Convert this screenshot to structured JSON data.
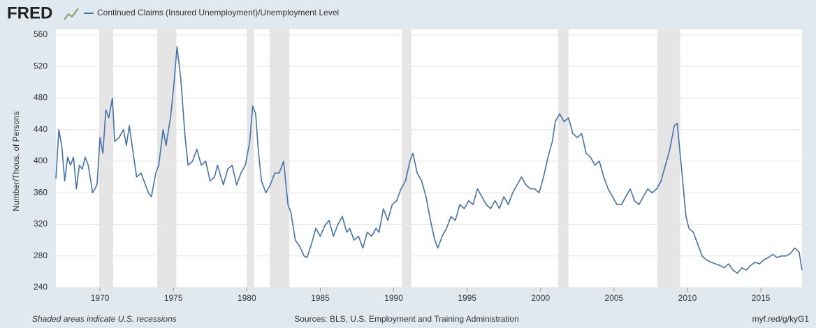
{
  "brand": "FRED",
  "chart_data": {
    "type": "line",
    "y_label": "Number/Thous. of Persons",
    "x": [
      1967.0,
      1967.2,
      1967.4,
      1967.6,
      1967.8,
      1968.0,
      1968.2,
      1968.4,
      1968.6,
      1968.8,
      1969.0,
      1969.2,
      1969.5,
      1969.8,
      1970.0,
      1970.2,
      1970.4,
      1970.6,
      1970.85,
      1971.0,
      1971.3,
      1971.6,
      1971.8,
      1972.0,
      1972.3,
      1972.5,
      1972.8,
      1973.0,
      1973.3,
      1973.5,
      1973.8,
      1974.0,
      1974.3,
      1974.5,
      1974.8,
      1975.0,
      1975.25,
      1975.5,
      1975.8,
      1976.0,
      1976.3,
      1976.6,
      1976.9,
      1977.2,
      1977.5,
      1977.8,
      1978.0,
      1978.4,
      1978.7,
      1979.0,
      1979.3,
      1979.6,
      1979.9,
      1980.2,
      1980.4,
      1980.6,
      1980.8,
      1981.0,
      1981.3,
      1981.6,
      1981.9,
      1982.2,
      1982.5,
      1982.8,
      1983.0,
      1983.3,
      1983.6,
      1983.9,
      1984.1,
      1984.4,
      1984.7,
      1985.0,
      1985.3,
      1985.6,
      1985.9,
      1986.2,
      1986.5,
      1986.8,
      1987.0,
      1987.3,
      1987.6,
      1987.9,
      1988.2,
      1988.5,
      1988.8,
      1989.0,
      1989.3,
      1989.6,
      1989.9,
      1990.2,
      1990.5,
      1990.8,
      1991.1,
      1991.3,
      1991.6,
      1991.9,
      1992.2,
      1992.5,
      1992.8,
      1993.0,
      1993.3,
      1993.6,
      1993.9,
      1994.2,
      1994.5,
      1994.8,
      1995.1,
      1995.4,
      1995.7,
      1996.0,
      1996.3,
      1996.6,
      1996.9,
      1997.2,
      1997.5,
      1997.8,
      1998.1,
      1998.4,
      1998.7,
      1999.0,
      1999.3,
      1999.6,
      1999.9,
      2000.2,
      2000.5,
      2000.8,
      2001.0,
      2001.3,
      2001.6,
      2001.9,
      2002.2,
      2002.5,
      2002.8,
      2003.1,
      2003.4,
      2003.7,
      2004.0,
      2004.3,
      2004.6,
      2004.9,
      2005.2,
      2005.5,
      2005.8,
      2006.1,
      2006.4,
      2006.7,
      2007.0,
      2007.3,
      2007.6,
      2007.9,
      2008.2,
      2008.5,
      2008.8,
      2009.1,
      2009.3,
      2009.6,
      2009.9,
      2010.1,
      2010.4,
      2010.7,
      2011.0,
      2011.3,
      2011.6,
      2011.9,
      2012.2,
      2012.5,
      2012.8,
      2013.1,
      2013.4,
      2013.7,
      2014.0,
      2014.3,
      2014.6,
      2014.9,
      2015.2,
      2015.5,
      2015.8,
      2016.1,
      2016.4,
      2016.7,
      2017.0,
      2017.3,
      2017.6,
      2017.8
    ],
    "series": [
      {
        "name": "Continued Claims (Insured Unemployment)/Unemployment Level",
        "color": "#4572a7",
        "values": [
          378,
          440,
          420,
          375,
          405,
          395,
          405,
          365,
          395,
          390,
          405,
          395,
          360,
          370,
          430,
          410,
          465,
          455,
          480,
          425,
          430,
          440,
          420,
          445,
          405,
          380,
          385,
          375,
          360,
          355,
          385,
          395,
          440,
          420,
          455,
          490,
          545,
          505,
          430,
          395,
          400,
          415,
          395,
          400,
          375,
          380,
          395,
          370,
          390,
          395,
          370,
          385,
          395,
          425,
          470,
          460,
          410,
          375,
          360,
          370,
          385,
          385,
          400,
          345,
          335,
          300,
          292,
          280,
          278,
          295,
          315,
          305,
          318,
          325,
          305,
          320,
          330,
          310,
          315,
          300,
          305,
          290,
          310,
          305,
          315,
          310,
          340,
          325,
          345,
          350,
          365,
          375,
          400,
          410,
          385,
          375,
          355,
          325,
          300,
          290,
          305,
          315,
          330,
          325,
          345,
          340,
          350,
          345,
          365,
          355,
          345,
          340,
          350,
          340,
          355,
          345,
          360,
          370,
          380,
          370,
          365,
          365,
          360,
          380,
          405,
          425,
          450,
          460,
          450,
          455,
          435,
          430,
          435,
          410,
          405,
          395,
          400,
          380,
          365,
          355,
          345,
          345,
          355,
          365,
          350,
          345,
          355,
          365,
          360,
          365,
          375,
          395,
          415,
          445,
          448,
          390,
          330,
          315,
          310,
          295,
          280,
          275,
          272,
          270,
          268,
          265,
          270,
          262,
          258,
          265,
          262,
          268,
          272,
          270,
          275,
          278,
          282,
          278,
          280,
          280,
          283,
          290,
          285,
          262
        ]
      }
    ],
    "recessions": [
      [
        1969.95,
        1970.9
      ],
      [
        1973.9,
        1975.2
      ],
      [
        1980.0,
        1980.5
      ],
      [
        1981.55,
        1982.9
      ],
      [
        1990.55,
        1991.2
      ],
      [
        2001.2,
        2001.9
      ],
      [
        2007.95,
        2009.5
      ]
    ],
    "xlim": [
      1967,
      2017.8
    ],
    "ylim": [
      240,
      560
    ],
    "xticks": [
      1970,
      1975,
      1980,
      1985,
      1990,
      1995,
      2000,
      2005,
      2010,
      2015
    ],
    "yticks": [
      240,
      280,
      320,
      360,
      400,
      440,
      480,
      520,
      560
    ],
    "grid": true
  },
  "footer": {
    "left": "Shaded areas indicate U.S. recessions",
    "center": "Sources: BLS, U.S. Employment and Training Administration",
    "right": "myf.red/g/kyG1"
  }
}
